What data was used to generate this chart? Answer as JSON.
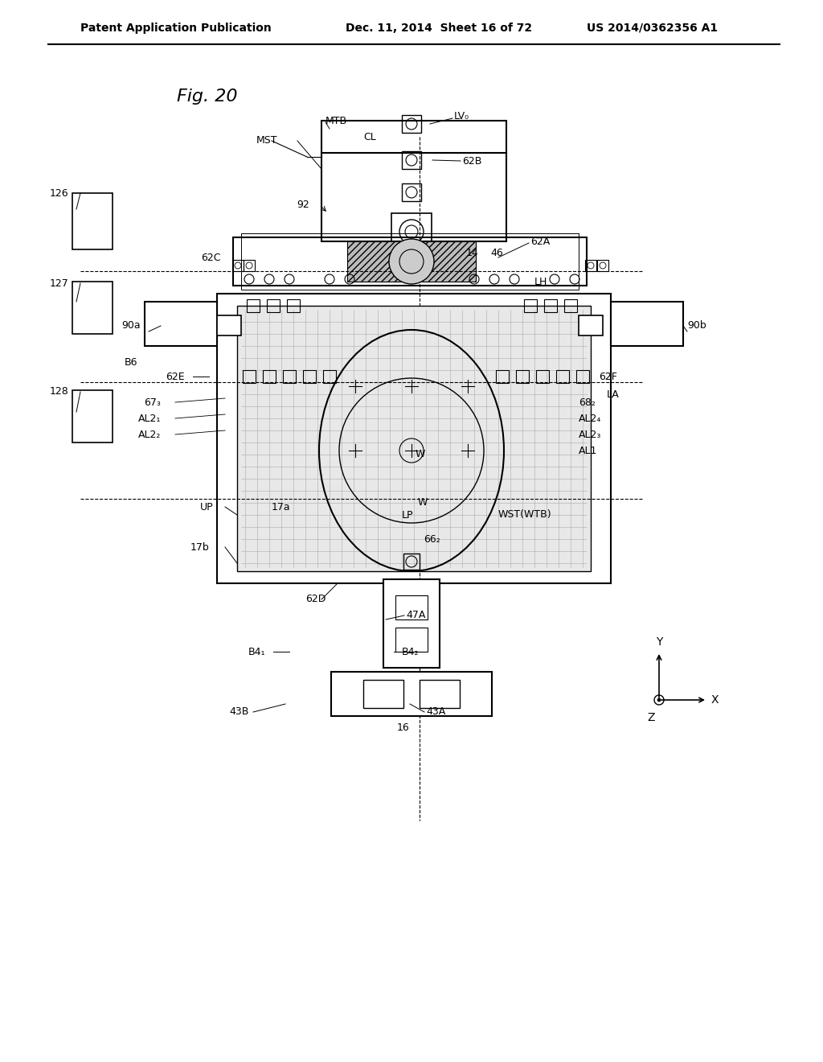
{
  "title": "Fig. 20",
  "header_left": "Patent Application Publication",
  "header_center": "Dec. 11, 2014  Sheet 16 of 72",
  "header_right": "US 2014/0362356 A1",
  "bg_color": "#ffffff",
  "line_color": "#000000",
  "gray_color": "#aaaaaa",
  "light_gray": "#cccccc"
}
